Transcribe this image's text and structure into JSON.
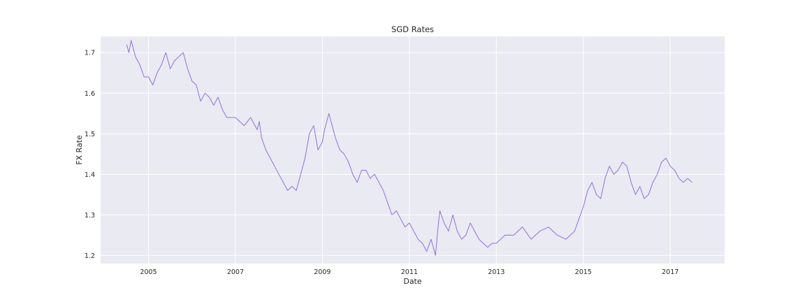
{
  "chart_data": {
    "type": "line",
    "title": "SGD Rates",
    "xlabel": "Date",
    "ylabel": "FX Rate",
    "xlim": [
      2003.9,
      2018.25
    ],
    "ylim": [
      1.18,
      1.74
    ],
    "xticks": [
      2005,
      2007,
      2009,
      2011,
      2013,
      2015,
      2017
    ],
    "yticks": [
      1.2,
      1.3,
      1.4,
      1.5,
      1.6,
      1.7
    ],
    "grid": true,
    "line_color": "#9370db",
    "background_color": "#eaeaf2",
    "series": [
      {
        "x": [
          2004.5,
          2004.55,
          2004.6,
          2004.65,
          2004.7,
          2004.8,
          2004.9,
          2005.0,
          2005.1,
          2005.2,
          2005.3,
          2005.4,
          2005.5,
          2005.6,
          2005.7,
          2005.8,
          2005.85,
          2005.9,
          2006.0,
          2006.1,
          2006.2,
          2006.3,
          2006.4,
          2006.5,
          2006.6,
          2006.7,
          2006.8,
          2006.9,
          2007.0,
          2007.2,
          2007.35,
          2007.5,
          2007.55,
          2007.6,
          2007.7,
          2007.8,
          2007.9,
          2008.0,
          2008.1,
          2008.2,
          2008.3,
          2008.4,
          2008.5,
          2008.6,
          2008.7,
          2008.8,
          2008.9,
          2009.0,
          2009.05,
          2009.15,
          2009.2,
          2009.3,
          2009.4,
          2009.5,
          2009.6,
          2009.7,
          2009.8,
          2009.9,
          2010.0,
          2010.1,
          2010.2,
          2010.3,
          2010.4,
          2010.5,
          2010.6,
          2010.7,
          2010.8,
          2010.9,
          2011.0,
          2011.1,
          2011.2,
          2011.3,
          2011.4,
          2011.5,
          2011.6,
          2011.65,
          2011.7,
          2011.8,
          2011.9,
          2012.0,
          2012.1,
          2012.2,
          2012.3,
          2012.4,
          2012.5,
          2012.6,
          2012.7,
          2012.8,
          2012.9,
          2013.0,
          2013.2,
          2013.4,
          2013.6,
          2013.8,
          2014.0,
          2014.2,
          2014.4,
          2014.6,
          2014.8,
          2014.9,
          2015.0,
          2015.1,
          2015.2,
          2015.3,
          2015.4,
          2015.5,
          2015.6,
          2015.7,
          2015.8,
          2015.9,
          2016.0,
          2016.1,
          2016.2,
          2016.3,
          2016.4,
          2016.5,
          2016.6,
          2016.7,
          2016.8,
          2016.9,
          2017.0,
          2017.1,
          2017.2,
          2017.3,
          2017.4,
          2017.5
        ],
        "y": [
          1.72,
          1.7,
          1.73,
          1.71,
          1.69,
          1.67,
          1.64,
          1.64,
          1.62,
          1.65,
          1.67,
          1.7,
          1.66,
          1.68,
          1.69,
          1.7,
          1.68,
          1.66,
          1.63,
          1.62,
          1.58,
          1.6,
          1.59,
          1.57,
          1.59,
          1.56,
          1.54,
          1.54,
          1.54,
          1.52,
          1.54,
          1.51,
          1.53,
          1.49,
          1.46,
          1.44,
          1.42,
          1.4,
          1.38,
          1.36,
          1.37,
          1.36,
          1.4,
          1.44,
          1.5,
          1.52,
          1.46,
          1.48,
          1.51,
          1.55,
          1.53,
          1.49,
          1.46,
          1.45,
          1.43,
          1.4,
          1.38,
          1.41,
          1.41,
          1.39,
          1.4,
          1.38,
          1.36,
          1.33,
          1.3,
          1.31,
          1.29,
          1.27,
          1.28,
          1.26,
          1.24,
          1.23,
          1.21,
          1.24,
          1.2,
          1.26,
          1.31,
          1.28,
          1.26,
          1.3,
          1.26,
          1.24,
          1.25,
          1.28,
          1.26,
          1.24,
          1.23,
          1.22,
          1.23,
          1.23,
          1.25,
          1.25,
          1.27,
          1.24,
          1.26,
          1.27,
          1.25,
          1.24,
          1.26,
          1.29,
          1.32,
          1.36,
          1.38,
          1.35,
          1.34,
          1.39,
          1.42,
          1.4,
          1.41,
          1.43,
          1.42,
          1.38,
          1.35,
          1.37,
          1.34,
          1.35,
          1.38,
          1.4,
          1.43,
          1.44,
          1.42,
          1.41,
          1.39,
          1.38,
          1.39,
          1.38
        ]
      }
    ]
  }
}
